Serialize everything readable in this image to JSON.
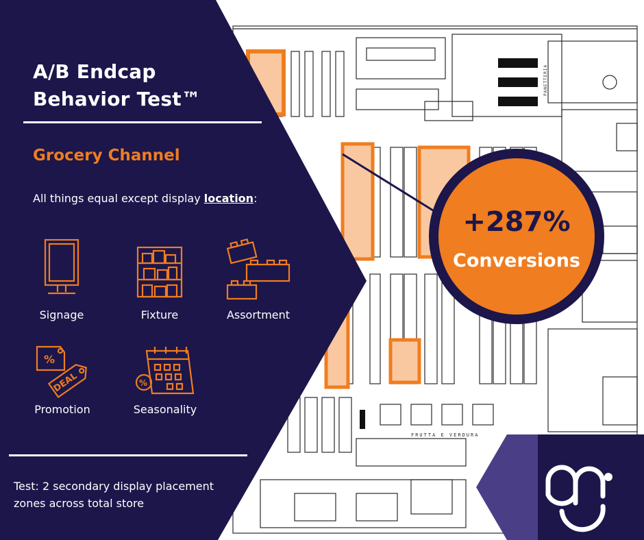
{
  "title": {
    "line1": "A/B Endcap",
    "line2": "Behavior Test™"
  },
  "channel": "Grocery Channel",
  "intro": {
    "prefix": "All things equal except display ",
    "emphasis": "location",
    "suffix": ":"
  },
  "factors": [
    {
      "label": "Signage",
      "icon": "signage-icon"
    },
    {
      "label": "Fixture",
      "icon": "fixture-shelf-icon"
    },
    {
      "label": "Assortment",
      "icon": "assortment-blocks-icon"
    },
    {
      "label": "Promotion",
      "icon": "deal-tag-icon"
    },
    {
      "label": "Seasonality",
      "icon": "calendar-icon"
    }
  ],
  "result": {
    "value": "+287%",
    "label": "Conversions"
  },
  "footer": {
    "line1": "Test: 2 secondary display placement",
    "line2": "zones across total store"
  },
  "floorplan_labels": [
    "FRUTTA E VERDURA",
    "PANETTERIA"
  ],
  "colors": {
    "navy": "#1c164a",
    "orange": "#f07d1f",
    "highlight": "#f9c8a0",
    "white": "#ffffff"
  }
}
